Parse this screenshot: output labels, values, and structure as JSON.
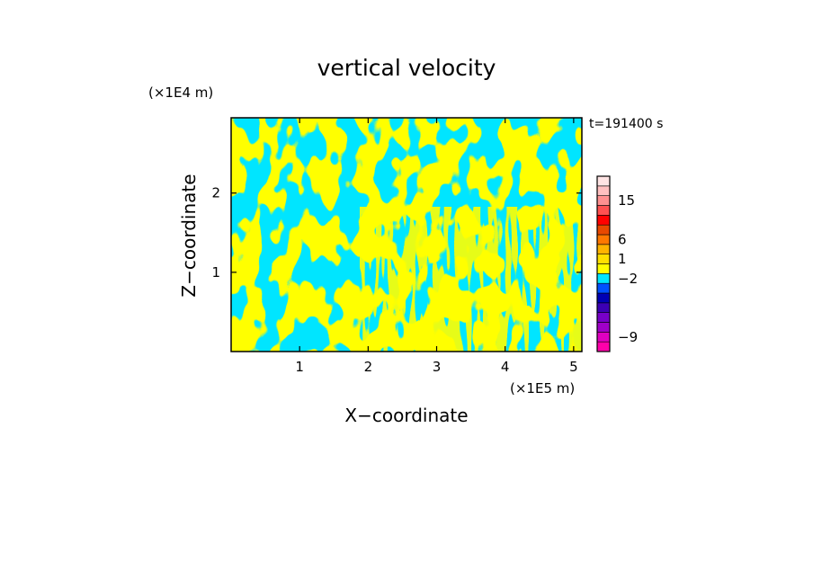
{
  "chart_data": {
    "type": "heatmap",
    "title": "vertical velocity",
    "xlabel": "X−coordinate",
    "ylabel": "Z−coordinate",
    "x_unit_label": "(×1E5 m)",
    "y_unit_label": "(×1E4 m)",
    "time_label": "t=191400 s",
    "xlim": [
      0,
      5.12
    ],
    "ylim": [
      0,
      2.95
    ],
    "x_ticks": [
      {
        "value": 1,
        "label": "1"
      },
      {
        "value": 2,
        "label": "2"
      },
      {
        "value": 3,
        "label": "3"
      },
      {
        "value": 4,
        "label": "4"
      },
      {
        "value": 5,
        "label": "5"
      }
    ],
    "y_ticks": [
      {
        "value": 1,
        "label": "1"
      },
      {
        "value": 2,
        "label": "2"
      }
    ],
    "field_colors": {
      "positive": "#ffff00",
      "negative": "#00e5ff"
    },
    "colorbar": {
      "levels": [
        {
          "color": "#ff00aa"
        },
        {
          "color": "#e000c0"
        },
        {
          "color": "#a000c8"
        },
        {
          "color": "#7800c8"
        },
        {
          "color": "#3c00b4"
        },
        {
          "color": "#0000b4"
        },
        {
          "color": "#0050ff"
        },
        {
          "color": "#00e5ff"
        },
        {
          "color": "#ffff00"
        },
        {
          "color": "#ffe000"
        },
        {
          "color": "#ffb400"
        },
        {
          "color": "#ff7800"
        },
        {
          "color": "#e84800"
        },
        {
          "color": "#ff0000"
        },
        {
          "color": "#ff5050"
        },
        {
          "color": "#ff9090"
        },
        {
          "color": "#ffc0c0"
        },
        {
          "color": "#ffe4e4"
        }
      ],
      "labels": [
        {
          "text": "15",
          "level": 15
        },
        {
          "text": "6",
          "level": 11
        },
        {
          "text": "1",
          "level": 9
        },
        {
          "text": "−2",
          "level": 7
        },
        {
          "text": "−9",
          "level": 1
        }
      ]
    }
  }
}
